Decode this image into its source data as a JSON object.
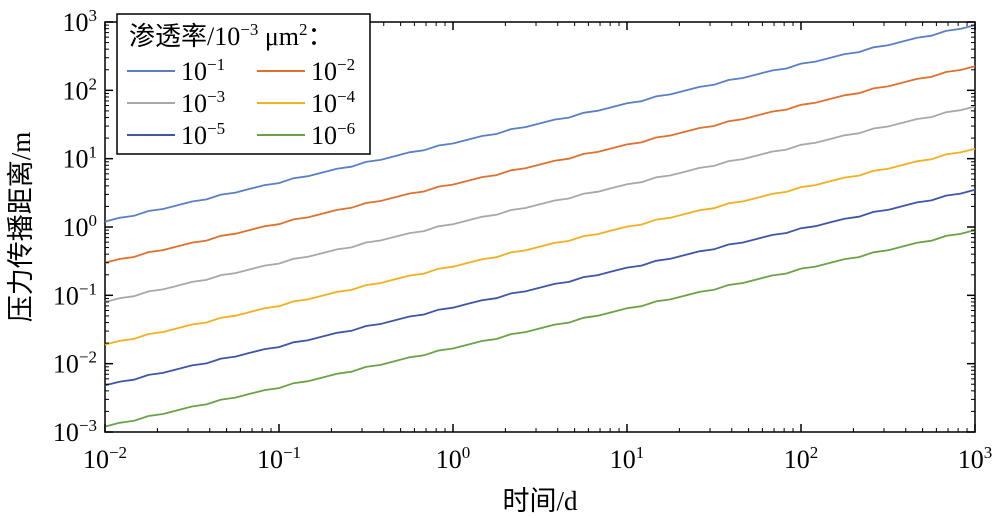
{
  "chart_data": {
    "type": "line",
    "xlabel": "时间/d",
    "ylabel": "压力传播距离/m",
    "x_scale": "log",
    "y_scale": "log",
    "xlim": [
      0.01,
      1000
    ],
    "ylim": [
      0.001,
      1000
    ],
    "x_ticks": [
      {
        "base": "10",
        "exp": "−2",
        "value": 0.01
      },
      {
        "base": "10",
        "exp": "−1",
        "value": 0.1
      },
      {
        "base": "10",
        "exp": "0",
        "value": 1
      },
      {
        "base": "10",
        "exp": "1",
        "value": 10
      },
      {
        "base": "10",
        "exp": "2",
        "value": 100
      },
      {
        "base": "10",
        "exp": "3",
        "value": 1000
      }
    ],
    "y_ticks": [
      {
        "base": "10",
        "exp": "−3",
        "value": 0.001
      },
      {
        "base": "10",
        "exp": "−2",
        "value": 0.01
      },
      {
        "base": "10",
        "exp": "−1",
        "value": 0.1
      },
      {
        "base": "10",
        "exp": "0",
        "value": 1
      },
      {
        "base": "10",
        "exp": "1",
        "value": 10
      },
      {
        "base": "10",
        "exp": "2",
        "value": 100
      },
      {
        "base": "10",
        "exp": "3",
        "value": 1000
      }
    ],
    "grid": false,
    "legend": {
      "title_prefix": "渗透率/10",
      "title_exp": "−3",
      "title_unit": " μm",
      "title_unit_exp": "2",
      "title_suffix": "：",
      "placement": "top-left",
      "columns": 2
    },
    "series": [
      {
        "name_base": "10",
        "name_exp": "−1",
        "color": "#5b7fc7",
        "x": [
          0.01,
          1000
        ],
        "y": [
          1.2,
          900
        ]
      },
      {
        "name_base": "10",
        "name_exp": "−2",
        "color": "#e0712c",
        "x": [
          0.01,
          1000
        ],
        "y": [
          0.3,
          225
        ]
      },
      {
        "name_base": "10",
        "name_exp": "−3",
        "color": "#a8a8a8",
        "x": [
          0.01,
          1000
        ],
        "y": [
          0.08,
          58
        ]
      },
      {
        "name_base": "10",
        "name_exp": "−4",
        "color": "#f2b01e",
        "x": [
          0.01,
          1000
        ],
        "y": [
          0.019,
          14
        ]
      },
      {
        "name_base": "10",
        "name_exp": "−5",
        "color": "#3d57a6",
        "x": [
          0.01,
          1000
        ],
        "y": [
          0.0048,
          3.5
        ]
      },
      {
        "name_base": "10",
        "name_exp": "−6",
        "color": "#6aa345",
        "x": [
          0.01,
          1000
        ],
        "y": [
          0.0012,
          0.9
        ]
      }
    ]
  }
}
